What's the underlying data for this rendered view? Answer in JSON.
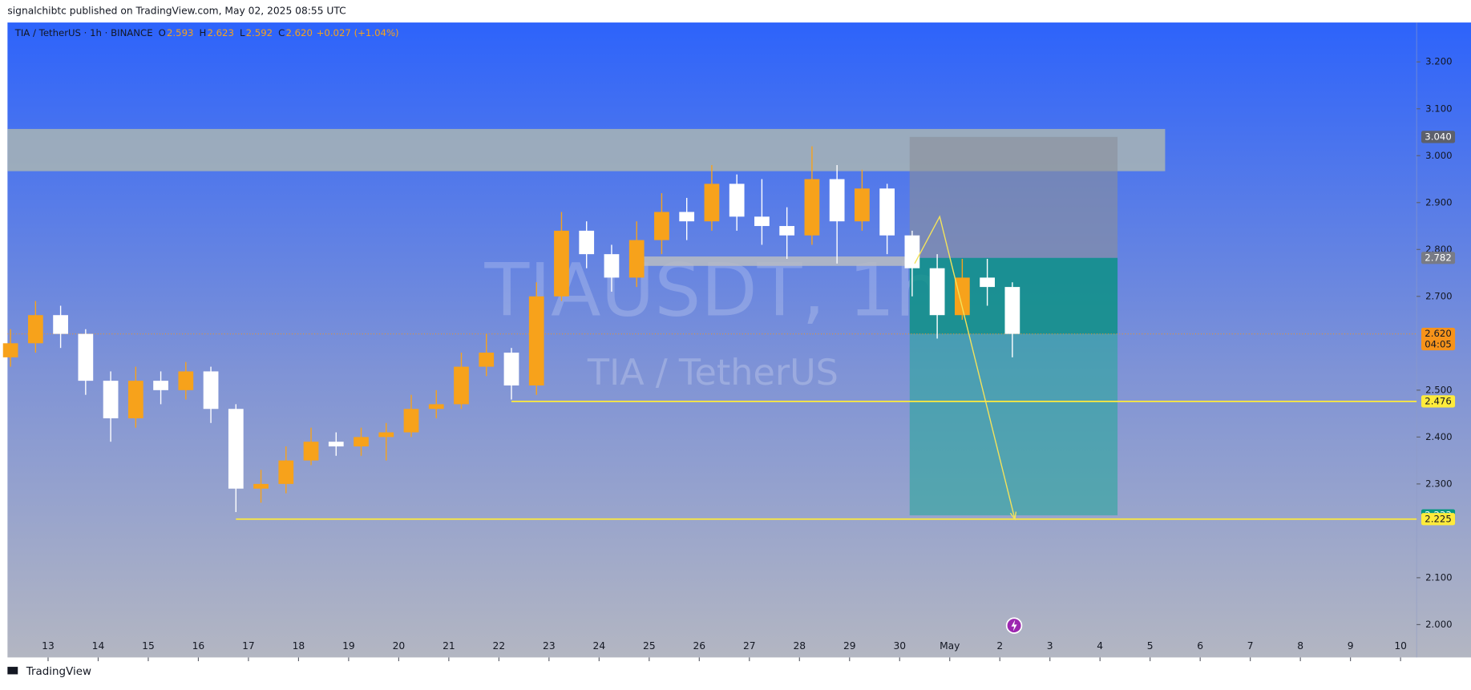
{
  "chart_data": {
    "type": "candlestick",
    "header": "signalchibtc published on TradingView.com, May 02, 2025 08:55 UTC",
    "symbol": "TIA / TetherUS · 1h · BINANCE",
    "ohlc_legend": [
      {
        "name": "O",
        "value": 2.593
      },
      {
        "name": "H",
        "value": 2.623
      },
      {
        "name": "L",
        "value": 2.592
      },
      {
        "name": "C",
        "value": 2.62,
        "value_label": "2.620"
      }
    ],
    "change": "+0.027 (+1.04%)",
    "watermark": "TIAUSDT, 1h",
    "watermark_subtitle": "TIA / TetherUS",
    "footer": "TradingView",
    "up_color": "#f7a21b",
    "down_color": "#ffffff",
    "x": [
      12.25,
      12.75,
      13.25,
      13.75,
      14.25,
      14.75,
      15.25,
      15.75,
      16.25,
      16.75,
      17.25,
      17.75,
      18.25,
      18.75,
      19.25,
      19.75,
      20.25,
      20.75,
      21.25,
      21.75,
      22.25,
      22.75,
      23.25,
      23.75,
      24.25,
      24.75,
      25.25,
      25.75,
      26.25,
      26.75,
      27.25,
      27.75,
      28.25,
      28.75,
      29.25,
      29.75,
      30.25,
      30.75,
      31.25,
      31.75,
      32.25
    ],
    "open": [
      2.57,
      2.6,
      2.66,
      2.62,
      2.52,
      2.44,
      2.52,
      2.5,
      2.54,
      2.46,
      2.29,
      2.3,
      2.35,
      2.39,
      2.38,
      2.4,
      2.41,
      2.46,
      2.47,
      2.55,
      2.58,
      2.51,
      2.7,
      2.84,
      2.79,
      2.74,
      2.82,
      2.88,
      2.86,
      2.94,
      2.87,
      2.85,
      2.83,
      2.95,
      2.86,
      2.93,
      2.83,
      2.76,
      2.66,
      2.74,
      2.72
    ],
    "high": [
      2.63,
      2.69,
      2.68,
      2.63,
      2.54,
      2.55,
      2.54,
      2.56,
      2.55,
      2.47,
      2.33,
      2.38,
      2.42,
      2.41,
      2.42,
      2.43,
      2.49,
      2.5,
      2.58,
      2.62,
      2.59,
      2.73,
      2.88,
      2.86,
      2.81,
      2.86,
      2.92,
      2.91,
      2.98,
      2.96,
      2.95,
      2.89,
      3.02,
      2.98,
      2.97,
      2.94,
      2.84,
      2.79,
      2.78,
      2.78,
      2.73
    ],
    "low": [
      2.55,
      2.58,
      2.59,
      2.49,
      2.39,
      2.42,
      2.47,
      2.48,
      2.43,
      2.24,
      2.26,
      2.28,
      2.34,
      2.36,
      2.36,
      2.35,
      2.4,
      2.44,
      2.46,
      2.53,
      2.48,
      2.49,
      2.69,
      2.76,
      2.71,
      2.72,
      2.79,
      2.82,
      2.84,
      2.84,
      2.81,
      2.78,
      2.81,
      2.77,
      2.84,
      2.79,
      2.7,
      2.61,
      2.65,
      2.68,
      2.57
    ],
    "close": [
      2.6,
      2.66,
      2.62,
      2.52,
      2.44,
      2.52,
      2.5,
      2.54,
      2.46,
      2.29,
      2.3,
      2.35,
      2.39,
      2.38,
      2.4,
      2.41,
      2.46,
      2.47,
      2.55,
      2.58,
      2.51,
      2.7,
      2.84,
      2.79,
      2.74,
      2.82,
      2.88,
      2.86,
      2.94,
      2.87,
      2.85,
      2.83,
      2.95,
      2.86,
      2.93,
      2.83,
      2.76,
      2.66,
      2.74,
      2.72,
      2.62
    ],
    "xlim": [
      12.19,
      40.32
    ],
    "ylim": [
      1.93,
      3.284
    ],
    "xticks": [
      13,
      14,
      15,
      16,
      17,
      18,
      19,
      20,
      21,
      22,
      23,
      24,
      25,
      26,
      27,
      28,
      29,
      30,
      {
        "value": 31,
        "label": "May"
      },
      {
        "value": 32,
        "label": "2"
      },
      {
        "value": 33,
        "label": "3"
      },
      {
        "value": 34,
        "label": "4"
      },
      {
        "value": 35,
        "label": "5"
      },
      {
        "value": 36,
        "label": "6"
      },
      {
        "value": 37,
        "label": "7"
      },
      {
        "value": 38,
        "label": "8"
      },
      {
        "value": 39,
        "label": "9"
      },
      {
        "value": 40,
        "label": "10"
      }
    ],
    "yticks": [
      {
        "value": 2.0,
        "label": "2.000"
      },
      {
        "value": 2.1,
        "label": "2.100"
      },
      {
        "value": 2.3,
        "label": "2.300"
      },
      {
        "value": 2.4,
        "label": "2.400"
      },
      {
        "value": 2.5,
        "label": "2.500"
      },
      {
        "value": 2.7,
        "label": "2.700"
      },
      {
        "value": 2.8,
        "label": "2.800"
      },
      {
        "value": 2.9,
        "label": "2.900"
      },
      {
        "value": 3.0,
        "label": "3.000"
      },
      {
        "value": 3.1,
        "label": "3.100"
      },
      {
        "value": 3.2,
        "label": "3.200"
      }
    ],
    "resistance_zone": {
      "low": 2.967,
      "high": 3.057,
      "from_x": 12.19,
      "to_x": 35.3,
      "color": "#a9b5b4"
    },
    "support_band": {
      "low": 2.765,
      "high": 2.785,
      "from_x": 24.9,
      "to_x": 30.3,
      "color": "#b8bcc2"
    },
    "levels": [
      {
        "value": 2.476,
        "from_x": 22.25,
        "color": "#ffeb3b"
      },
      {
        "value": 2.225,
        "from_x": 16.75,
        "color": "#ffeb3b"
      }
    ],
    "position": {
      "entry": 2.782,
      "stop": {
        "value": 3.04,
        "label": "3.040"
      },
      "target": 2.233,
      "from_x": 30.2,
      "to_x": 34.35,
      "stop_color": "#8a8f99",
      "target_color": "#2aa79b"
    },
    "current_price": {
      "value": 2.62,
      "label": "2.620",
      "countdown": "04:05",
      "color": "#f7931a"
    },
    "arrow": {
      "x": [
        30.3,
        30.8,
        32.3
      ],
      "y": [
        2.77,
        2.87,
        2.225
      ],
      "color": "#f2e25c"
    }
  }
}
